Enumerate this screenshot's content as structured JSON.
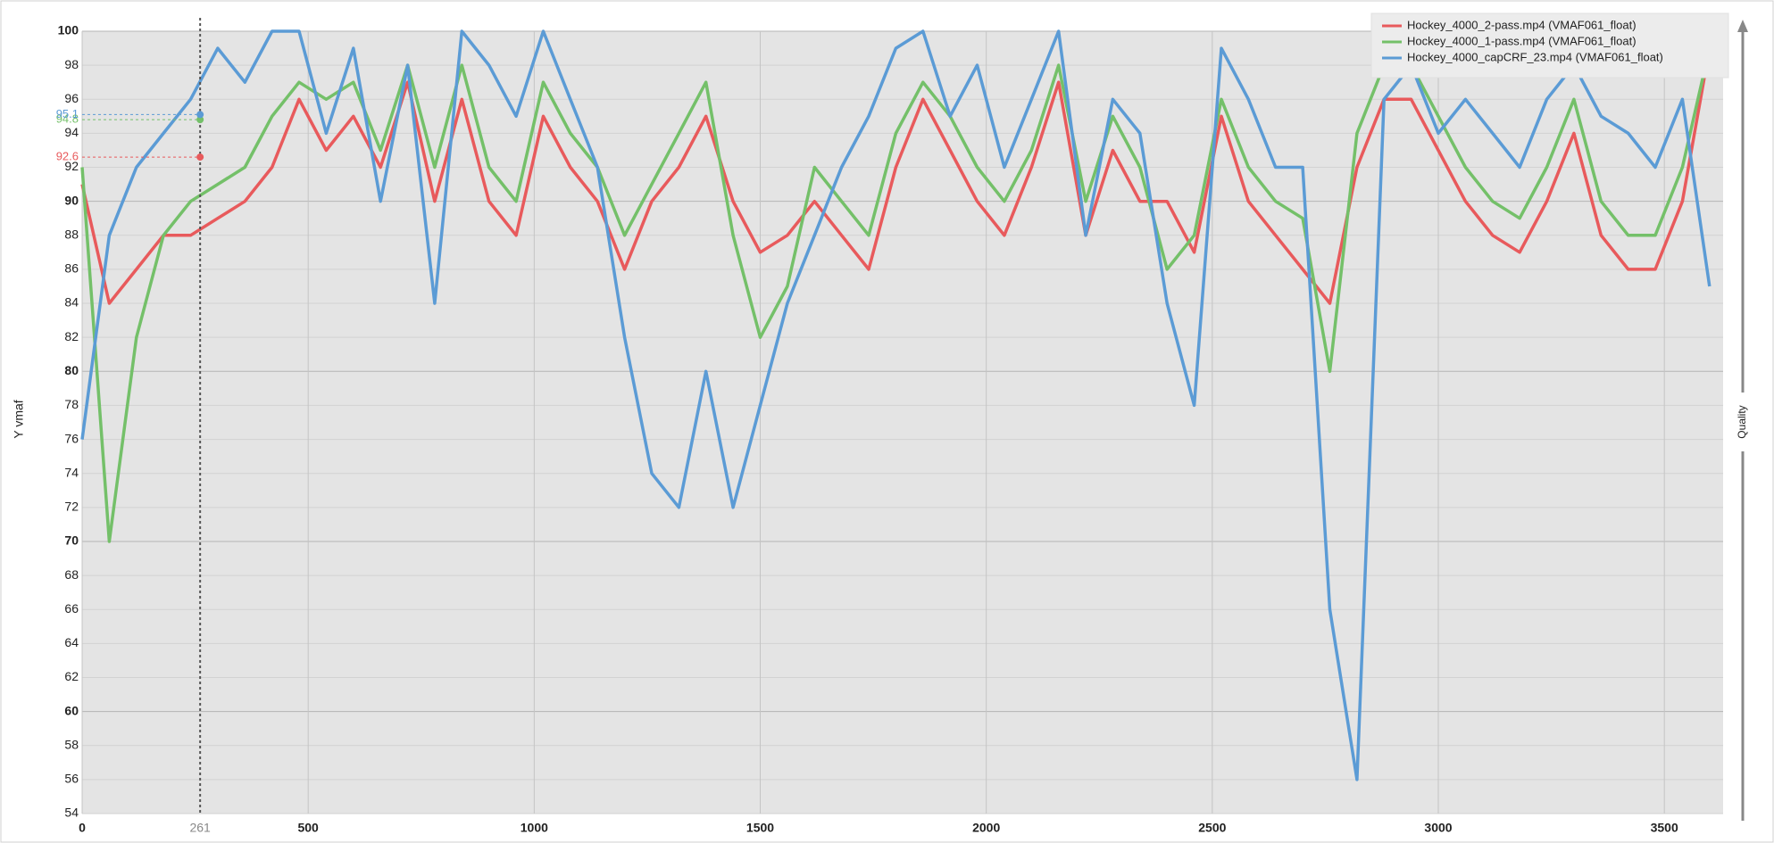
{
  "chart_data": {
    "type": "line",
    "y_label": "Y vmaf",
    "side_label": "Quality",
    "x": [
      0,
      60,
      120,
      180,
      240,
      300,
      360,
      420,
      480,
      540,
      600,
      660,
      720,
      780,
      840,
      900,
      960,
      1020,
      1080,
      1140,
      1200,
      1260,
      1320,
      1380,
      1440,
      1500,
      1560,
      1620,
      1680,
      1740,
      1800,
      1860,
      1920,
      1980,
      2040,
      2100,
      2160,
      2220,
      2280,
      2340,
      2400,
      2460,
      2520,
      2580,
      2640,
      2700,
      2760,
      2820,
      2880,
      2940,
      3000,
      3060,
      3120,
      3180,
      3240,
      3300,
      3360,
      3420,
      3480,
      3540,
      3600
    ],
    "series": [
      {
        "name": "Hockey_4000_2-pass.mp4 (VMAF061_float)",
        "color": "#e85a5c",
        "values": [
          91,
          84,
          86,
          88,
          88,
          89,
          90,
          92,
          96,
          93,
          95,
          92,
          97,
          90,
          96,
          90,
          88,
          95,
          92,
          90,
          86,
          90,
          92,
          95,
          90,
          87,
          88,
          90,
          88,
          86,
          92,
          96,
          93,
          90,
          88,
          92,
          97,
          88,
          93,
          90,
          90,
          87,
          95,
          90,
          88,
          86,
          84,
          92,
          96,
          96,
          93,
          90,
          88,
          87,
          90,
          94,
          88,
          86,
          86,
          90,
          99
        ]
      },
      {
        "name": "Hockey_4000_1-pass.mp4 (VMAF061_float)",
        "color": "#74c069",
        "values": [
          92,
          70,
          82,
          88,
          90,
          91,
          92,
          95,
          97,
          96,
          97,
          93,
          98,
          92,
          98,
          92,
          90,
          97,
          94,
          92,
          88,
          91,
          94,
          97,
          88,
          82,
          85,
          92,
          90,
          88,
          94,
          97,
          95,
          92,
          90,
          93,
          98,
          90,
          95,
          92,
          86,
          88,
          96,
          92,
          90,
          89,
          80,
          94,
          98,
          98,
          95,
          92,
          90,
          89,
          92,
          96,
          90,
          88,
          88,
          92,
          99
        ]
      },
      {
        "name": "Hockey_4000_capCRF_23.mp4 (VMAF061_float)",
        "color": "#5b9bd5",
        "values": [
          76,
          88,
          92,
          94,
          96,
          99,
          97,
          100,
          100,
          94,
          99,
          90,
          98,
          84,
          100,
          98,
          95,
          100,
          96,
          92,
          82,
          74,
          72,
          80,
          72,
          78,
          84,
          88,
          92,
          95,
          99,
          100,
          95,
          98,
          92,
          96,
          100,
          88,
          96,
          94,
          84,
          78,
          99,
          96,
          92,
          92,
          66,
          56,
          96,
          98,
          94,
          96,
          94,
          92,
          96,
          98,
          95,
          94,
          92,
          96,
          85
        ]
      }
    ],
    "cursor": {
      "x": 261,
      "values": [
        92.6,
        94.8,
        95.1
      ]
    },
    "xlim": [
      0,
      3630
    ],
    "xticks": [
      0,
      500,
      1000,
      1500,
      2000,
      2500,
      3000,
      3500
    ],
    "ylim": [
      54,
      100
    ],
    "yticks": [
      54,
      56,
      58,
      60,
      62,
      64,
      66,
      68,
      70,
      72,
      74,
      76,
      78,
      80,
      82,
      84,
      86,
      88,
      90,
      92,
      94,
      96,
      98,
      100
    ],
    "grid": true,
    "legend": "top-right"
  }
}
